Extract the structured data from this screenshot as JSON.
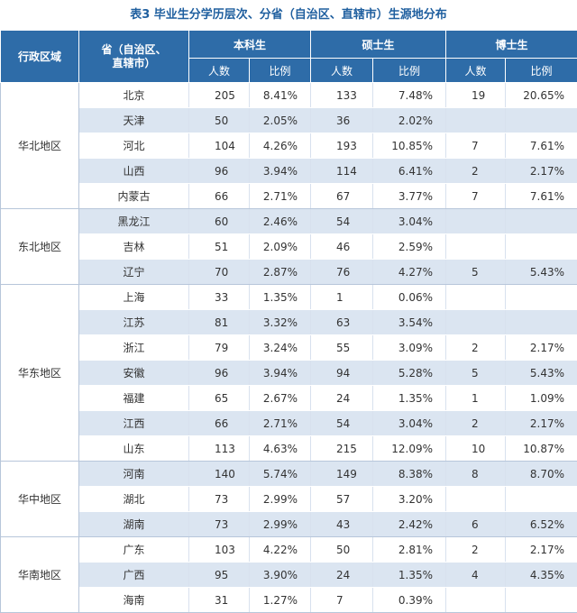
{
  "title": "表3 毕业生分学历层次、分省（自治区、直辖市）生源地分布",
  "header": {
    "region": "行政区域",
    "province": "省（自治区、直辖市）",
    "province_line1": "省（自治区、",
    "province_line2": "直辖市）",
    "bachelor": "本科生",
    "master": "硕士生",
    "doctor": "博士生",
    "count": "人数",
    "ratio": "比例"
  },
  "groups": [
    {
      "region": "华北地区",
      "rows": [
        {
          "province": "北京",
          "b_n": "205",
          "b_p": "8.41%",
          "m_n": "133",
          "m_p": "7.48%",
          "d_n": "19",
          "d_p": "20.65%"
        },
        {
          "province": "天津",
          "b_n": "50",
          "b_p": "2.05%",
          "m_n": "36",
          "m_p": "2.02%",
          "d_n": "",
          "d_p": ""
        },
        {
          "province": "河北",
          "b_n": "104",
          "b_p": "4.26%",
          "m_n": "193",
          "m_p": "10.85%",
          "d_n": "7",
          "d_p": "7.61%"
        },
        {
          "province": "山西",
          "b_n": "96",
          "b_p": "3.94%",
          "m_n": "114",
          "m_p": "6.41%",
          "d_n": "2",
          "d_p": "2.17%"
        },
        {
          "province": "内蒙古",
          "b_n": "66",
          "b_p": "2.71%",
          "m_n": "67",
          "m_p": "3.77%",
          "d_n": "7",
          "d_p": "7.61%"
        }
      ]
    },
    {
      "region": "东北地区",
      "rows": [
        {
          "province": "黑龙江",
          "b_n": "60",
          "b_p": "2.46%",
          "m_n": "54",
          "m_p": "3.04%",
          "d_n": "",
          "d_p": ""
        },
        {
          "province": "吉林",
          "b_n": "51",
          "b_p": "2.09%",
          "m_n": "46",
          "m_p": "2.59%",
          "d_n": "",
          "d_p": ""
        },
        {
          "province": "辽宁",
          "b_n": "70",
          "b_p": "2.87%",
          "m_n": "76",
          "m_p": "4.27%",
          "d_n": "5",
          "d_p": "5.43%"
        }
      ]
    },
    {
      "region": "华东地区",
      "rows": [
        {
          "province": "上海",
          "b_n": "33",
          "b_p": "1.35%",
          "m_n": "1",
          "m_p": "0.06%",
          "d_n": "",
          "d_p": ""
        },
        {
          "province": "江苏",
          "b_n": "81",
          "b_p": "3.32%",
          "m_n": "63",
          "m_p": "3.54%",
          "d_n": "",
          "d_p": ""
        },
        {
          "province": "浙江",
          "b_n": "79",
          "b_p": "3.24%",
          "m_n": "55",
          "m_p": "3.09%",
          "d_n": "2",
          "d_p": "2.17%"
        },
        {
          "province": "安徽",
          "b_n": "96",
          "b_p": "3.94%",
          "m_n": "94",
          "m_p": "5.28%",
          "d_n": "5",
          "d_p": "5.43%"
        },
        {
          "province": "福建",
          "b_n": "65",
          "b_p": "2.67%",
          "m_n": "24",
          "m_p": "1.35%",
          "d_n": "1",
          "d_p": "1.09%"
        },
        {
          "province": "江西",
          "b_n": "66",
          "b_p": "2.71%",
          "m_n": "54",
          "m_p": "3.04%",
          "d_n": "2",
          "d_p": "2.17%"
        },
        {
          "province": "山东",
          "b_n": "113",
          "b_p": "4.63%",
          "m_n": "215",
          "m_p": "12.09%",
          "d_n": "10",
          "d_p": "10.87%"
        }
      ]
    },
    {
      "region": "华中地区",
      "rows": [
        {
          "province": "河南",
          "b_n": "140",
          "b_p": "5.74%",
          "m_n": "149",
          "m_p": "8.38%",
          "d_n": "8",
          "d_p": "8.70%"
        },
        {
          "province": "湖北",
          "b_n": "73",
          "b_p": "2.99%",
          "m_n": "57",
          "m_p": "3.20%",
          "d_n": "",
          "d_p": ""
        },
        {
          "province": "湖南",
          "b_n": "73",
          "b_p": "2.99%",
          "m_n": "43",
          "m_p": "2.42%",
          "d_n": "6",
          "d_p": "6.52%"
        }
      ]
    },
    {
      "region": "华南地区",
      "rows": [
        {
          "province": "广东",
          "b_n": "103",
          "b_p": "4.22%",
          "m_n": "50",
          "m_p": "2.81%",
          "d_n": "2",
          "d_p": "2.17%"
        },
        {
          "province": "广西",
          "b_n": "95",
          "b_p": "3.90%",
          "m_n": "24",
          "m_p": "1.35%",
          "d_n": "4",
          "d_p": "4.35%"
        },
        {
          "province": "海南",
          "b_n": "31",
          "b_p": "1.27%",
          "m_n": "7",
          "m_p": "0.39%",
          "d_n": "",
          "d_p": ""
        }
      ]
    }
  ]
}
